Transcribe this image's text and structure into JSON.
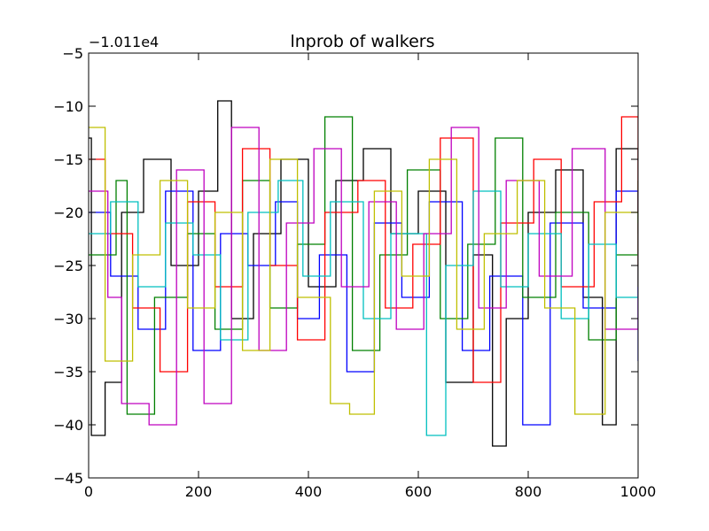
{
  "chart_data": {
    "type": "line",
    "title": "lnprob of walkers",
    "xlabel": "",
    "ylabel": "",
    "xlim": [
      0,
      1000
    ],
    "ylim": [
      -45,
      -5
    ],
    "y_offset_label": "−1.011e4",
    "x_ticks": [
      0,
      200,
      400,
      600,
      800,
      1000
    ],
    "y_ticks": [
      -5,
      -10,
      -15,
      -20,
      -25,
      -30,
      -35,
      -40,
      -45
    ],
    "x_tick_labels": [
      "0",
      "200",
      "400",
      "600",
      "800",
      "1000"
    ],
    "y_tick_labels": [
      "−5",
      "−10",
      "−15",
      "−20",
      "−25",
      "−30",
      "−35",
      "−40",
      "−45"
    ],
    "grid": false,
    "legend": "none",
    "series_colors": [
      "#0000ff",
      "#008000",
      "#ff0000",
      "#00bfbf",
      "#bf00bf",
      "#bfbf00",
      "#000000"
    ],
    "n_steps": 1000,
    "typical_range": [
      -37,
      -11
    ],
    "series": [
      {
        "color": "#000000",
        "points": [
          [
            0,
            -13
          ],
          [
            5,
            -41
          ],
          [
            30,
            -36
          ],
          [
            60,
            -20
          ],
          [
            100,
            -15
          ],
          [
            150,
            -25
          ],
          [
            200,
            -18
          ],
          [
            235,
            -9.5
          ],
          [
            260,
            -30
          ],
          [
            300,
            -22
          ],
          [
            350,
            -15
          ],
          [
            400,
            -27
          ],
          [
            450,
            -17
          ],
          [
            500,
            -14
          ],
          [
            550,
            -22
          ],
          [
            600,
            -18
          ],
          [
            650,
            -36
          ],
          [
            700,
            -24
          ],
          [
            735,
            -42
          ],
          [
            760,
            -30
          ],
          [
            800,
            -20
          ],
          [
            850,
            -16
          ],
          [
            900,
            -28
          ],
          [
            935,
            -40
          ],
          [
            960,
            -14
          ],
          [
            1000,
            -22
          ]
        ]
      },
      {
        "color": "#0000ff",
        "points": [
          [
            0,
            -20
          ],
          [
            40,
            -26
          ],
          [
            90,
            -31
          ],
          [
            140,
            -18
          ],
          [
            190,
            -33
          ],
          [
            240,
            -22
          ],
          [
            290,
            -25
          ],
          [
            340,
            -19
          ],
          [
            380,
            -30
          ],
          [
            420,
            -24
          ],
          [
            470,
            -35
          ],
          [
            520,
            -21
          ],
          [
            570,
            -28
          ],
          [
            620,
            -19
          ],
          [
            680,
            -33
          ],
          [
            730,
            -26
          ],
          [
            790,
            -40
          ],
          [
            840,
            -21
          ],
          [
            900,
            -29
          ],
          [
            960,
            -18
          ],
          [
            1000,
            -34
          ]
        ]
      },
      {
        "color": "#008000",
        "points": [
          [
            0,
            -24
          ],
          [
            50,
            -17
          ],
          [
            70,
            -39
          ],
          [
            120,
            -28
          ],
          [
            180,
            -22
          ],
          [
            230,
            -31
          ],
          [
            280,
            -17
          ],
          [
            330,
            -29
          ],
          [
            380,
            -23
          ],
          [
            430,
            -11
          ],
          [
            480,
            -33
          ],
          [
            530,
            -24
          ],
          [
            580,
            -16
          ],
          [
            640,
            -30
          ],
          [
            690,
            -23
          ],
          [
            740,
            -13
          ],
          [
            790,
            -28
          ],
          [
            850,
            -20
          ],
          [
            910,
            -32
          ],
          [
            960,
            -24
          ],
          [
            1000,
            -17
          ]
        ]
      },
      {
        "color": "#ff0000",
        "points": [
          [
            0,
            -15
          ],
          [
            30,
            -22
          ],
          [
            80,
            -29
          ],
          [
            130,
            -35
          ],
          [
            180,
            -19
          ],
          [
            230,
            -27
          ],
          [
            280,
            -14
          ],
          [
            330,
            -25
          ],
          [
            380,
            -32
          ],
          [
            430,
            -20
          ],
          [
            490,
            -17
          ],
          [
            540,
            -29
          ],
          [
            590,
            -23
          ],
          [
            640,
            -13
          ],
          [
            700,
            -36
          ],
          [
            750,
            -21
          ],
          [
            810,
            -15
          ],
          [
            860,
            -27
          ],
          [
            920,
            -19
          ],
          [
            970,
            -11
          ],
          [
            1000,
            -25
          ]
        ]
      },
      {
        "color": "#00bfbf",
        "points": [
          [
            0,
            -22
          ],
          [
            40,
            -19
          ],
          [
            90,
            -27
          ],
          [
            140,
            -21
          ],
          [
            190,
            -24
          ],
          [
            240,
            -32
          ],
          [
            290,
            -20
          ],
          [
            345,
            -17
          ],
          [
            390,
            -26
          ],
          [
            440,
            -19
          ],
          [
            500,
            -30
          ],
          [
            550,
            -22
          ],
          [
            615,
            -41
          ],
          [
            650,
            -25
          ],
          [
            700,
            -18
          ],
          [
            750,
            -27
          ],
          [
            800,
            -22
          ],
          [
            860,
            -30
          ],
          [
            910,
            -23
          ],
          [
            960,
            -28
          ],
          [
            1000,
            -20
          ]
        ]
      },
      {
        "color": "#bf00bf",
        "points": [
          [
            0,
            -18
          ],
          [
            35,
            -28
          ],
          [
            60,
            -38
          ],
          [
            110,
            -40
          ],
          [
            160,
            -16
          ],
          [
            210,
            -38
          ],
          [
            260,
            -12
          ],
          [
            310,
            -33
          ],
          [
            360,
            -21
          ],
          [
            410,
            -14
          ],
          [
            460,
            -27
          ],
          [
            510,
            -19
          ],
          [
            560,
            -31
          ],
          [
            610,
            -22
          ],
          [
            660,
            -12
          ],
          [
            710,
            -29
          ],
          [
            760,
            -17
          ],
          [
            820,
            -26
          ],
          [
            880,
            -14
          ],
          [
            940,
            -31
          ],
          [
            1000,
            -21
          ]
        ]
      },
      {
        "color": "#bfbf00",
        "points": [
          [
            0,
            -12
          ],
          [
            30,
            -34
          ],
          [
            80,
            -24
          ],
          [
            130,
            -17
          ],
          [
            180,
            -29
          ],
          [
            230,
            -20
          ],
          [
            280,
            -33
          ],
          [
            330,
            -15
          ],
          [
            380,
            -28
          ],
          [
            440,
            -38
          ],
          [
            475,
            -39
          ],
          [
            520,
            -18
          ],
          [
            570,
            -26
          ],
          [
            620,
            -15
          ],
          [
            670,
            -31
          ],
          [
            720,
            -22
          ],
          [
            780,
            -17
          ],
          [
            830,
            -29
          ],
          [
            885,
            -39
          ],
          [
            940,
            -20
          ],
          [
            1000,
            -27
          ]
        ]
      }
    ]
  }
}
